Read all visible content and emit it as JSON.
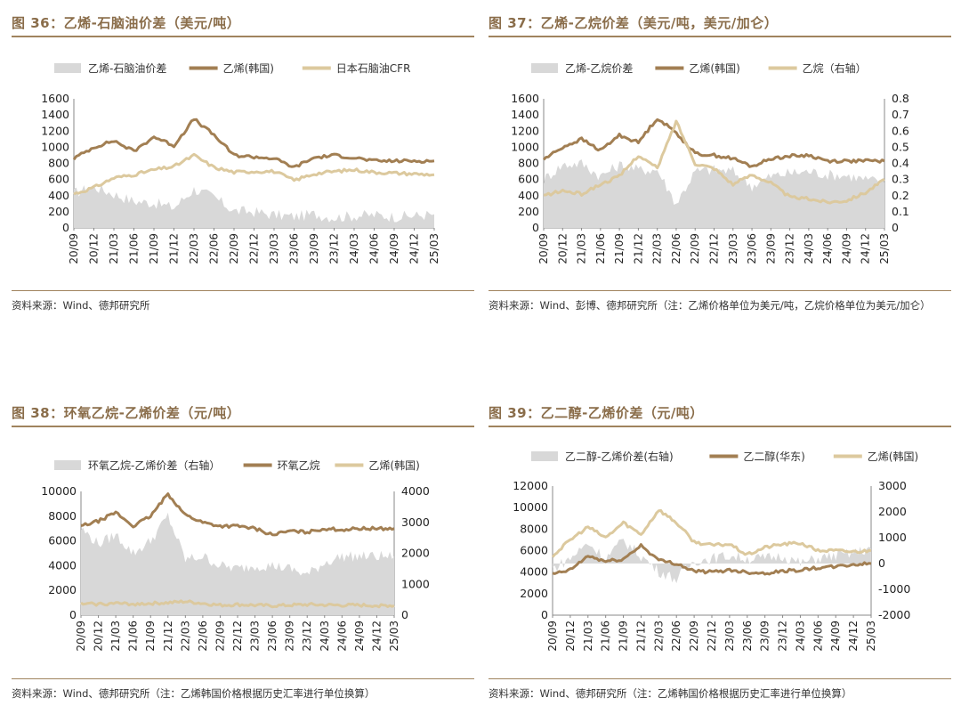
{
  "colors": {
    "area": "#d8d8d8",
    "dark": "#a27f53",
    "light": "#dcc99e",
    "title": "#8a6d4a"
  },
  "panels": [
    {
      "id": "p36",
      "title": "图 36：乙烯-石脑油价差（美元/吨）",
      "source": "资料来源：Wind、德邦研究所"
    },
    {
      "id": "p37",
      "title": "图 37：乙烯-乙烷价差（美元/吨，美元/加仑）",
      "source": "资料来源：Wind、彭博、德邦研究所（注：乙烯价格单位为美元/吨，乙烷价格单位为美元/加仑）"
    },
    {
      "id": "p38",
      "title": "图 38：环氧乙烷-乙烯价差（元/吨）",
      "source": "资料来源：Wind、德邦研究所（注：乙烯韩国价格根据历史汇率进行单位换算）"
    },
    {
      "id": "p39",
      "title": "图 39：乙二醇-乙烯价差（元/吨）",
      "source": "资料来源：Wind、德邦研究所（注：乙烯韩国价格根据历史汇率进行单位换算）"
    }
  ],
  "chart_data": [
    {
      "type": "line",
      "x": [
        "20/09",
        "20/12",
        "21/03",
        "21/06",
        "21/09",
        "21/12",
        "22/03",
        "22/06",
        "22/09",
        "22/12",
        "23/03",
        "23/06",
        "23/09",
        "23/12",
        "24/03",
        "24/06",
        "24/09",
        "24/12",
        "25/03"
      ],
      "x_ticks": [
        "20/09",
        "20/12",
        "21/03",
        "21/06",
        "21/09",
        "21/12",
        "22/03",
        "22/06",
        "22/09",
        "22/12",
        "23/03",
        "23/06",
        "23/09",
        "23/12",
        "24/03",
        "24/06",
        "24/09",
        "24/12",
        "25/03"
      ],
      "ylim": [
        0,
        1600
      ],
      "y_ticks": [
        0,
        200,
        400,
        600,
        800,
        1000,
        1200,
        1400,
        1600
      ],
      "series": [
        {
          "name": "乙烯-石脑油价差",
          "kind": "area",
          "axis": "left",
          "values": [
            430,
            510,
            420,
            330,
            310,
            250,
            480,
            380,
            210,
            200,
            160,
            140,
            170,
            130,
            150,
            160,
            140,
            150,
            170
          ]
        },
        {
          "name": "乙烯(韩国)",
          "kind": "line",
          "axis": "left",
          "values": [
            860,
            1000,
            1080,
            950,
            1130,
            1020,
            1350,
            1150,
            900,
            880,
            860,
            750,
            870,
            900,
            870,
            830,
            830,
            830,
            830
          ]
        },
        {
          "name": "日本石脑油CFR",
          "kind": "line",
          "axis": "left",
          "values": [
            420,
            500,
            620,
            660,
            720,
            760,
            900,
            750,
            690,
            700,
            700,
            590,
            670,
            700,
            720,
            690,
            680,
            670,
            660
          ]
        }
      ]
    },
    {
      "type": "line",
      "x": [
        "20/09",
        "20/12",
        "21/03",
        "21/06",
        "21/09",
        "21/12",
        "22/03",
        "22/06",
        "22/09",
        "22/12",
        "23/03",
        "23/06",
        "23/09",
        "23/12",
        "24/03",
        "24/06",
        "24/09",
        "24/12",
        "25/03"
      ],
      "x_ticks": [
        "20/09",
        "20/12",
        "21/03",
        "21/06",
        "21/09",
        "21/12",
        "22/03",
        "22/06",
        "22/09",
        "22/12",
        "23/03",
        "23/06",
        "23/09",
        "23/12",
        "24/03",
        "24/06",
        "24/09",
        "24/12",
        "25/03"
      ],
      "ylim": [
        0,
        1600
      ],
      "y_ticks": [
        0,
        200,
        400,
        600,
        800,
        1000,
        1200,
        1400,
        1600
      ],
      "y2lim": [
        0,
        0.8
      ],
      "y2_ticks": [
        "0",
        "0.1",
        "0.2",
        "0.3",
        "0.4",
        "0.5",
        "0.6",
        "0.7",
        "0.8"
      ],
      "series": [
        {
          "name": "乙烯-乙烷价差",
          "kind": "area",
          "axis": "left",
          "values": [
            600,
            780,
            800,
            640,
            780,
            720,
            720,
            300,
            700,
            720,
            700,
            520,
            640,
            680,
            700,
            660,
            650,
            600,
            560
          ]
        },
        {
          "name": "乙烯(韩国)",
          "kind": "line",
          "axis": "left",
          "values": [
            850,
            1000,
            1100,
            960,
            1150,
            1060,
            1360,
            1180,
            920,
            900,
            860,
            760,
            860,
            890,
            900,
            830,
            830,
            830,
            830
          ]
        },
        {
          "name": "乙烷（右轴）",
          "kind": "line",
          "axis": "right",
          "values": [
            0.2,
            0.23,
            0.21,
            0.27,
            0.32,
            0.45,
            0.37,
            0.66,
            0.4,
            0.37,
            0.27,
            0.33,
            0.28,
            0.19,
            0.18,
            0.16,
            0.17,
            0.22,
            0.3
          ]
        }
      ]
    },
    {
      "type": "line",
      "x": [
        "20/09",
        "20/12",
        "21/03",
        "21/06",
        "21/09",
        "21/12",
        "22/03",
        "22/06",
        "22/09",
        "22/12",
        "23/03",
        "23/06",
        "23/09",
        "23/12",
        "24/03",
        "24/06",
        "24/09",
        "24/12",
        "25/03"
      ],
      "x_ticks": [
        "20/09",
        "20/12",
        "21/03",
        "21/06",
        "21/09",
        "21/12",
        "22/03",
        "22/06",
        "22/09",
        "22/12",
        "23/03",
        "23/06",
        "23/09",
        "23/12",
        "24/03",
        "24/06",
        "24/09",
        "24/12",
        "25/03"
      ],
      "ylim": [
        0,
        10000
      ],
      "y_ticks": [
        0,
        2000,
        4000,
        6000,
        8000,
        10000
      ],
      "y2lim": [
        0,
        4000
      ],
      "y2_ticks": [
        0,
        1000,
        2000,
        3000,
        4000
      ],
      "series": [
        {
          "name": "环氧乙烷-乙烯价差（右轴）",
          "kind": "area",
          "axis": "right",
          "values": [
            2800,
            2300,
            2600,
            2000,
            2400,
            3200,
            1800,
            1900,
            1600,
            1500,
            1600,
            1600,
            1500,
            1300,
            1700,
            1900,
            1900,
            1900,
            1900
          ]
        },
        {
          "name": "环氧乙烷",
          "kind": "line",
          "axis": "left",
          "values": [
            7200,
            7600,
            8300,
            7200,
            8000,
            9800,
            8100,
            7500,
            7200,
            7200,
            7000,
            6500,
            6800,
            6700,
            7000,
            6900,
            7000,
            7000,
            7000
          ]
        },
        {
          "name": "乙烯(韩国)",
          "kind": "line",
          "axis": "left",
          "values": [
            900,
            900,
            950,
            900,
            950,
            1000,
            1100,
            950,
            800,
            850,
            800,
            750,
            800,
            850,
            820,
            800,
            800,
            780,
            780
          ]
        }
      ]
    },
    {
      "type": "line",
      "x": [
        "20/09",
        "20/12",
        "21/03",
        "21/06",
        "21/09",
        "21/12",
        "22/03",
        "22/06",
        "22/09",
        "22/12",
        "23/03",
        "23/06",
        "23/09",
        "23/12",
        "24/03",
        "24/06",
        "24/09",
        "24/12",
        "25/03"
      ],
      "x_ticks": [
        "20/09",
        "20/12",
        "21/03",
        "21/06",
        "21/09",
        "21/12",
        "22/03",
        "22/06",
        "22/09",
        "22/12",
        "23/03",
        "23/06",
        "23/09",
        "23/12",
        "24/03",
        "24/06",
        "24/09",
        "24/12",
        "25/03"
      ],
      "ylim": [
        0,
        12000
      ],
      "y_ticks": [
        0,
        2000,
        4000,
        6000,
        8000,
        10000,
        12000
      ],
      "y2lim": [
        -2000,
        3000
      ],
      "y2_ticks": [
        -2000,
        -1000,
        0,
        1000,
        2000,
        3000
      ],
      "series": [
        {
          "name": "乙二醇-乙烯价差(右轴)",
          "kind": "area",
          "axis": "right",
          "values": [
            -200,
            200,
            800,
            200,
            900,
            300,
            -300,
            -600,
            100,
            200,
            300,
            200,
            200,
            300,
            0,
            200,
            300,
            400,
            600
          ]
        },
        {
          "name": "乙二醇(华东)",
          "kind": "line",
          "axis": "left",
          "values": [
            3800,
            4200,
            5500,
            5000,
            5200,
            6500,
            5100,
            4800,
            4100,
            4000,
            4200,
            4000,
            3900,
            4100,
            4200,
            4400,
            4500,
            4700,
            4800
          ]
        },
        {
          "name": "乙烯(韩国)",
          "kind": "line",
          "axis": "left",
          "values": [
            5500,
            7000,
            8200,
            7200,
            8600,
            7500,
            9800,
            8600,
            6800,
            6500,
            6600,
            5600,
            6300,
            6600,
            6700,
            6000,
            6000,
            5900,
            6000
          ]
        }
      ]
    }
  ]
}
